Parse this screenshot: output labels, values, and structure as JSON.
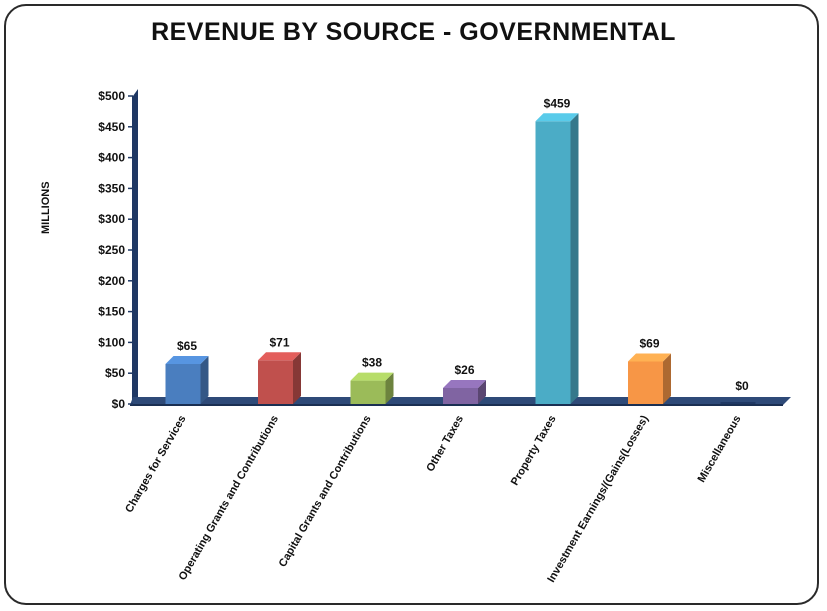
{
  "chart_data": {
    "type": "bar",
    "title": "REVENUE BY SOURCE - GOVERNMENTAL",
    "ylabel": "MILLIONS",
    "xlabel": "",
    "ylim": [
      0,
      500
    ],
    "yticks": [
      "$0",
      "$50",
      "$100",
      "$150",
      "$200",
      "$250",
      "$300",
      "$350",
      "$400",
      "$450",
      "$500"
    ],
    "categories": [
      "Charges for Services",
      "Operating Grants and Contributions",
      "Capital Grants and Contributions",
      "Other Taxes",
      "Property Taxes",
      "Investment Earnings/(Gains(Losses)",
      "Miscellaneous"
    ],
    "values": [
      65,
      71,
      38,
      26,
      459,
      69,
      0
    ],
    "data_labels": [
      "$65",
      "$71",
      "$38",
      "$26",
      "$459",
      "$69",
      "$0"
    ],
    "colors": [
      "#4a7ebf",
      "#c0504d",
      "#9bbb59",
      "#8064a2",
      "#4bacc6",
      "#f79646",
      "#1f3864"
    ],
    "grid": false,
    "legend": "none"
  }
}
